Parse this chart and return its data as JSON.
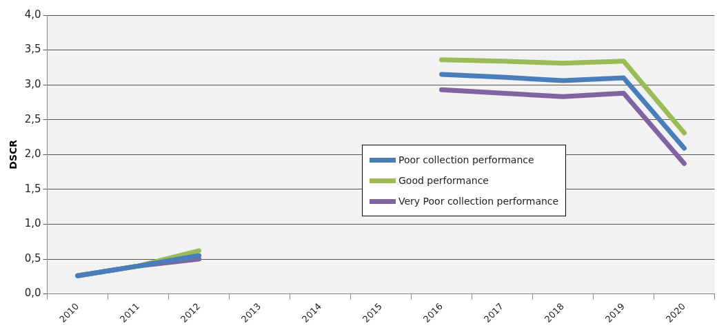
{
  "chart_data": {
    "type": "line",
    "ylabel": "DSCR",
    "categories": [
      "2010",
      "2011",
      "2012",
      "2013",
      "2014",
      "2015",
      "2016",
      "2017",
      "2018",
      "2019",
      "2020"
    ],
    "series": [
      {
        "name": "Poor collection performance",
        "color": "#4a7ebb",
        "values": [
          0.26,
          0.4,
          0.55,
          null,
          null,
          null,
          3.15,
          3.11,
          3.06,
          3.1,
          2.09
        ]
      },
      {
        "name": "Good  performance",
        "color": "#9bbb59",
        "values": [
          0.26,
          0.4,
          0.62,
          null,
          null,
          null,
          3.36,
          3.34,
          3.31,
          3.34,
          2.31
        ]
      },
      {
        "name": "Very Poor collection performance",
        "color": "#8064a2",
        "values": [
          0.26,
          0.4,
          0.5,
          null,
          null,
          null,
          2.93,
          2.88,
          2.83,
          2.88,
          1.87
        ]
      }
    ],
    "ylim": [
      0,
      4
    ],
    "yticks": [
      {
        "value": 0,
        "label": "0,0"
      },
      {
        "value": 0.5,
        "label": "0,5"
      },
      {
        "value": 1,
        "label": "1,0"
      },
      {
        "value": 1.5,
        "label": "1,5"
      },
      {
        "value": 2,
        "label": "2,0"
      },
      {
        "value": 2.5,
        "label": "2,5"
      },
      {
        "value": 3,
        "label": "3,0"
      },
      {
        "value": 3.5,
        "label": "3,5"
      },
      {
        "value": 4,
        "label": "4,0"
      }
    ],
    "grid": "y",
    "legend": "right",
    "marker": "none",
    "line_style": "solid"
  }
}
